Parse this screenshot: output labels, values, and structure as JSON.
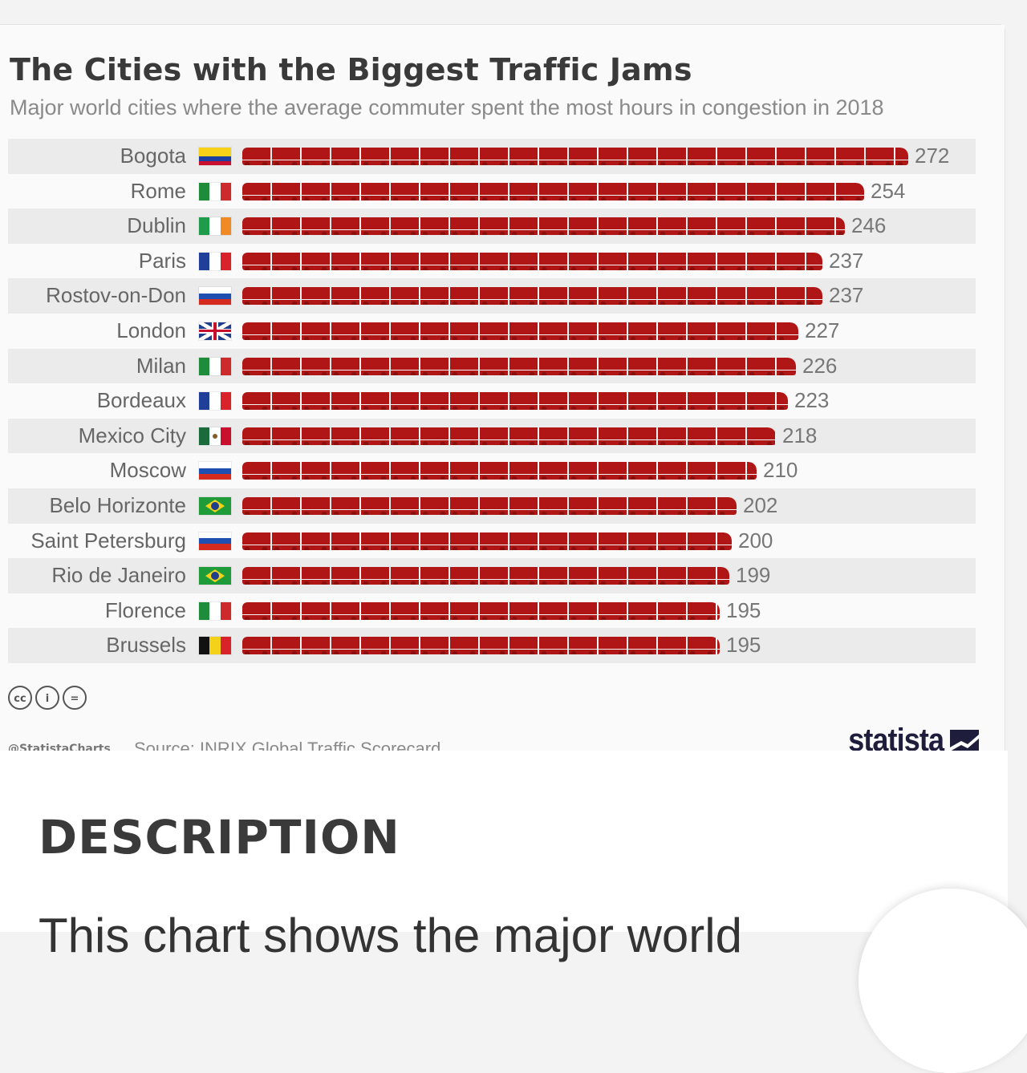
{
  "chart_data": {
    "type": "bar",
    "title": "The Cities with the Biggest Traffic Jams",
    "subtitle": "Major world cities where the average commuter spent the most hours in congestion in 2018",
    "categories": [
      "Bogota",
      "Rome",
      "Dublin",
      "Paris",
      "Rostov-on-Don",
      "London",
      "Milan",
      "Bordeaux",
      "Mexico City",
      "Moscow",
      "Belo Horizonte",
      "Saint Petersburg",
      "Rio de Janeiro",
      "Florence",
      "Brussels"
    ],
    "values": [
      272,
      254,
      246,
      237,
      237,
      227,
      226,
      223,
      218,
      210,
      202,
      200,
      199,
      195,
      195
    ],
    "xlim": [
      0,
      272
    ],
    "flags": [
      "colombia",
      "italy",
      "ireland",
      "france",
      "russia",
      "uk",
      "italy",
      "france",
      "mexico",
      "russia",
      "brazil",
      "russia",
      "brazil",
      "italy",
      "belgium"
    ],
    "bar_color": "#b01616",
    "bar_icon": "car-icon"
  },
  "footer": {
    "license_icons": [
      "cc-icon",
      "by-icon",
      "nd-icon"
    ],
    "license_glyphs": [
      "cc",
      "i",
      "="
    ],
    "handle": "@StatistaCharts",
    "source": "Source: INRIX Global Traffic Scorecard",
    "brand": "statista"
  },
  "description": {
    "heading": "DESCRIPTION",
    "text": "This chart shows the major world"
  }
}
